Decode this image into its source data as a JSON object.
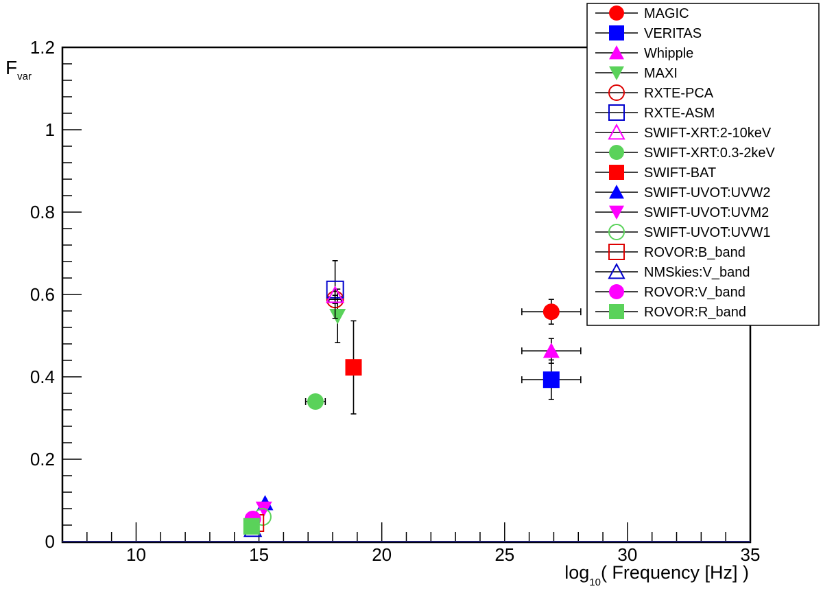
{
  "chart_data": {
    "type": "scatter",
    "title": "",
    "xlabel_main": "log",
    "xlabel_sub": "10",
    "xlabel_rest": "( Frequency [Hz] )",
    "ylabel_main": "F",
    "ylabel_sub": "var",
    "xlim": [
      7,
      35
    ],
    "ylim": [
      0,
      1.2
    ],
    "xticks": [
      10,
      15,
      20,
      25,
      30,
      35
    ],
    "yticks": [
      0,
      0.2,
      0.4,
      0.6,
      0.8,
      1,
      1.2
    ],
    "ytick_labels": [
      "0",
      "0.2",
      "0.4",
      "0.6",
      "0.8",
      "1",
      "1.2"
    ],
    "legend_position": "top-right",
    "series": [
      {
        "name": "MAGIC",
        "marker": "circle",
        "fill": true,
        "color": "#ff0000",
        "points": [
          {
            "x": 26.9,
            "y": 0.558,
            "xerr": 1.2,
            "yerr": 0.03
          }
        ]
      },
      {
        "name": "VERITAS",
        "marker": "square",
        "fill": true,
        "color": "#0000ff",
        "points": [
          {
            "x": 26.9,
            "y": 0.393,
            "xerr": 1.2,
            "yerr": 0.048
          }
        ]
      },
      {
        "name": "Whipple",
        "marker": "triangle-up",
        "fill": true,
        "color": "#ff00ff",
        "points": [
          {
            "x": 26.9,
            "y": 0.463,
            "xerr": 1.2,
            "yerr": 0.03
          }
        ]
      },
      {
        "name": "MAXI",
        "marker": "triangle-down",
        "fill": true,
        "color": "#5ad25a",
        "points": [
          {
            "x": 18.2,
            "y": 0.548,
            "xerr": 0,
            "yerr": 0.065
          }
        ]
      },
      {
        "name": "RXTE-PCA",
        "marker": "circle",
        "fill": false,
        "color": "#dd0000",
        "points": [
          {
            "x": 18.1,
            "y": 0.588,
            "xerr": 0.25,
            "yerr": 0.01
          }
        ]
      },
      {
        "name": "RXTE-ASM",
        "marker": "square",
        "fill": false,
        "color": "#0000cc",
        "points": [
          {
            "x": 18.1,
            "y": 0.612,
            "xerr": 0,
            "yerr": 0.07
          }
        ]
      },
      {
        "name": "SWIFT-XRT:2-10keV",
        "marker": "triangle-up",
        "fill": false,
        "color": "#ff00ff",
        "points": [
          {
            "x": 18.1,
            "y": 0.598,
            "xerr": 0,
            "yerr": 0.01
          }
        ]
      },
      {
        "name": "SWIFT-XRT:0.3-2keV",
        "marker": "circle",
        "fill": true,
        "color": "#5ad25a",
        "points": [
          {
            "x": 17.3,
            "y": 0.34,
            "xerr": 0.4,
            "yerr": 0.005
          }
        ]
      },
      {
        "name": "SWIFT-BAT",
        "marker": "square",
        "fill": true,
        "color": "#ff0000",
        "points": [
          {
            "x": 18.85,
            "y": 0.423,
            "xerr": 0,
            "yerr": 0.113
          }
        ]
      },
      {
        "name": "SWIFT-UVOT:UVW2",
        "marker": "triangle-up",
        "fill": true,
        "color": "#0000ff",
        "points": [
          {
            "x": 15.25,
            "y": 0.093,
            "xerr": 0,
            "yerr": 0
          }
        ]
      },
      {
        "name": "SWIFT-UVOT:UVM2",
        "marker": "triangle-down",
        "fill": true,
        "color": "#ff00ff",
        "points": [
          {
            "x": 15.2,
            "y": 0.08,
            "xerr": 0,
            "yerr": 0
          }
        ]
      },
      {
        "name": "SWIFT-UVOT:UVW1",
        "marker": "circle",
        "fill": false,
        "color": "#5ad25a",
        "points": [
          {
            "x": 15.15,
            "y": 0.06,
            "xerr": 0,
            "yerr": 0
          }
        ]
      },
      {
        "name": "ROVOR:B_band",
        "marker": "square",
        "fill": false,
        "color": "#dd0000",
        "points": [
          {
            "x": 14.85,
            "y": 0.045,
            "xerr": 0,
            "yerr": 0
          }
        ]
      },
      {
        "name": "NMSkies:V_band",
        "marker": "triangle-up",
        "fill": false,
        "color": "#0000cc",
        "points": [
          {
            "x": 14.75,
            "y": 0.03,
            "xerr": 0,
            "yerr": 0
          }
        ]
      },
      {
        "name": "ROVOR:V_band",
        "marker": "circle",
        "fill": true,
        "color": "#ff00ff",
        "points": [
          {
            "x": 14.75,
            "y": 0.055,
            "xerr": 0,
            "yerr": 0
          }
        ]
      },
      {
        "name": "ROVOR:R_band",
        "marker": "square",
        "fill": true,
        "color": "#5ad25a",
        "points": [
          {
            "x": 14.7,
            "y": 0.037,
            "xerr": 0,
            "yerr": 0
          }
        ]
      }
    ]
  }
}
